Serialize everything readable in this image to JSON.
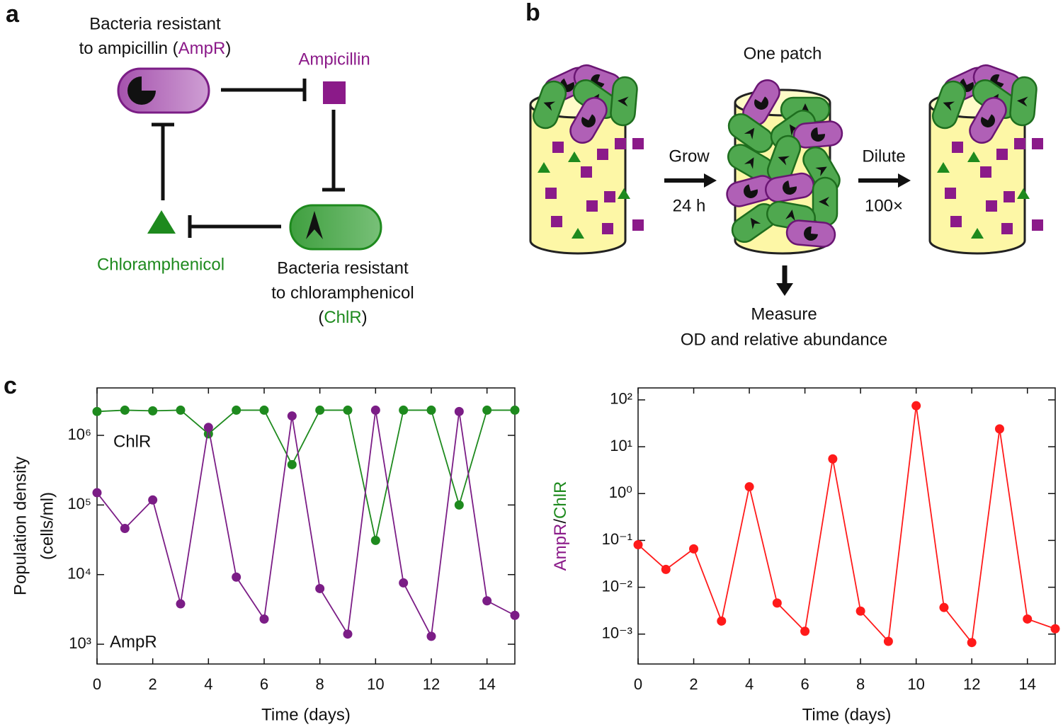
{
  "panel_labels": [
    "a",
    "b",
    "c"
  ],
  "panel_a": {
    "ampr_label": [
      "Bacteria resistant",
      "to ampicillin (",
      "AmpR",
      ")"
    ],
    "ampicillin": "Ampicillin",
    "chloramphenicol": "Chloramphenicol",
    "chlr_label": [
      "Bacteria resistant",
      "to chloramphenicol",
      "(",
      "ChlR",
      ")"
    ]
  },
  "panel_b": {
    "title": "One patch",
    "grow": "Grow",
    "grow_time": "24 h",
    "dilute": "Dilute",
    "dilute_factor": "100×",
    "measure": [
      "Measure",
      "OD and relative abundance"
    ]
  },
  "chart_data": [
    {
      "type": "line",
      "xlabel": "Time (days)",
      "ylabel": [
        "Population density",
        "(cells/ml)"
      ],
      "x": [
        0,
        1,
        2,
        3,
        4,
        5,
        6,
        7,
        8,
        9,
        10,
        11,
        12,
        13,
        14,
        15
      ],
      "xlim": [
        0,
        15
      ],
      "xticks": [
        0,
        2,
        4,
        6,
        8,
        10,
        12,
        14
      ],
      "log_y": true,
      "ylim": [
        520,
        4800000
      ],
      "yticks": [
        {
          "value": 1000,
          "label": "10³"
        },
        {
          "value": 10000,
          "label": "10⁴"
        },
        {
          "value": 100000,
          "label": "10⁵"
        },
        {
          "value": 1000000,
          "label": "10⁶"
        }
      ],
      "series": [
        {
          "name": "ChlR",
          "color": "#1e8a1e",
          "values": [
            2200000,
            2300000,
            2250000,
            2300000,
            1050000,
            2300000,
            2300000,
            380000,
            2300000,
            2300000,
            31000,
            2300000,
            2300000,
            100000,
            2300000,
            2300000
          ]
        },
        {
          "name": "AmpR",
          "color": "#7b1d86",
          "values": [
            150000,
            46000,
            118000,
            3800,
            1300000,
            9200,
            2300,
            1900000,
            6300,
            1400,
            2300000,
            7600,
            1300,
            2200000,
            4200,
            2600
          ]
        }
      ]
    },
    {
      "type": "line",
      "xlabel": "Time (days)",
      "ylabel": [
        "AmpR",
        "/",
        "ChlR"
      ],
      "ylabel_colors": [
        "#8b1a89",
        "#111111",
        "#1e8a1e"
      ],
      "x": [
        0,
        1,
        2,
        3,
        4,
        5,
        6,
        7,
        8,
        9,
        10,
        11,
        12,
        13,
        14,
        15
      ],
      "xlim": [
        0,
        15
      ],
      "xticks": [
        0,
        2,
        4,
        6,
        8,
        10,
        12,
        14
      ],
      "log_y": true,
      "ylim": [
        0.00023,
        180
      ],
      "yticks": [
        {
          "value": 0.001,
          "label": "10⁻³"
        },
        {
          "value": 0.01,
          "label": "10⁻²"
        },
        {
          "value": 0.1,
          "label": "10⁻¹"
        },
        {
          "value": 1,
          "label": "10⁰"
        },
        {
          "value": 10,
          "label": "10¹"
        },
        {
          "value": 100,
          "label": "10²"
        }
      ],
      "series": [
        {
          "color": "#ff1a1a",
          "values": [
            0.081,
            0.024,
            0.066,
            0.0019,
            1.4,
            0.0046,
            0.00115,
            5.5,
            0.0031,
            0.0007,
            75,
            0.0037,
            0.00066,
            24,
            0.0021,
            0.0013
          ]
        }
      ]
    }
  ]
}
